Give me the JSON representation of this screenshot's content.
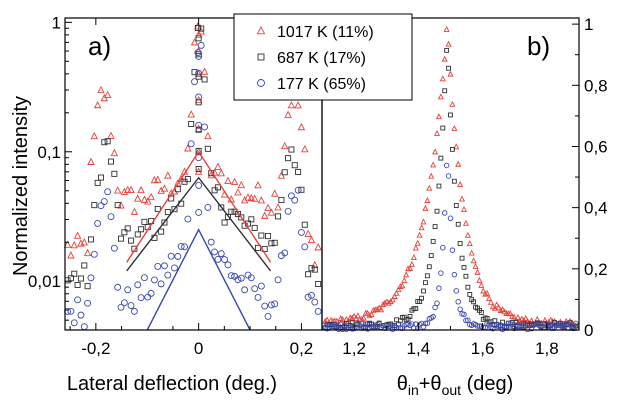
{
  "chart_data": [
    {
      "type": "scatter",
      "panel_label": "a)",
      "xlabel": "Lateral deflection (deg.)",
      "ylabel": "Normalized intensity",
      "yscale": "log",
      "xlim": [
        -0.26,
        0.24
      ],
      "ylim": [
        0.0042,
        1.08
      ],
      "xticks": [
        -0.2,
        0,
        0.2
      ],
      "xtick_labels": [
        "-0,2",
        "0",
        "0,2"
      ],
      "yticks": [
        0.01,
        0.1,
        1
      ],
      "ytick_labels": [
        "0,01",
        "0,1",
        "1"
      ],
      "grid": false,
      "legend": {
        "position": "top-center",
        "entries": [
          {
            "label": "1017 K (11%)",
            "marker": "triangle",
            "color": "#e8413a"
          },
          {
            "label": "687 K (17%)",
            "marker": "square",
            "color": "#303030"
          },
          {
            "label": "177 K (65%)",
            "marker": "circle",
            "color": "#3a48b0"
          }
        ]
      },
      "series": [
        {
          "name": "1017 K (11%)",
          "marker": "triangle",
          "color": "#e8413a",
          "model": {
            "background": 0.036,
            "center_scatter": 0.05,
            "spec_peak": 1.0,
            "side_peaks": 0.24,
            "side_pos": 0.185,
            "tail": 0.008
          },
          "fit_line": {
            "x": [
              -0.14,
              0,
              0.14
            ],
            "y": [
              0.014,
              0.1,
              0.014
            ]
          }
        },
        {
          "name": "687 K (17%)",
          "marker": "square",
          "color": "#303030",
          "model": {
            "background": 0.014,
            "center_scatter": 0.055,
            "spec_peak": 0.93,
            "side_peaks": 0.095,
            "side_pos": 0.18,
            "tail": 0.0065
          },
          "fit_line": {
            "x": [
              -0.14,
              0,
              0.14
            ],
            "y": [
              0.012,
              0.063,
              0.012
            ]
          }
        },
        {
          "name": "177 K (65%)",
          "marker": "circle",
          "color": "#3a48b0",
          "model": {
            "background": 0.0048,
            "center_scatter": 0.02,
            "spec_peak": 0.7,
            "side_peaks": 0.045,
            "side_pos": 0.185,
            "tail": 0.0045
          },
          "fit_line": {
            "x": [
              -0.1,
              0,
              0.1
            ],
            "y": [
              0.0042,
              0.025,
              0.0042
            ]
          }
        }
      ]
    },
    {
      "type": "scatter",
      "panel_label": "b)",
      "xlabel_parts": [
        "θ",
        "in",
        "+θ",
        "out",
        " (deg)"
      ],
      "ylabel": "",
      "yscale": "linear",
      "xlim": [
        1.1,
        1.9
      ],
      "ylim": [
        0,
        1.02
      ],
      "xticks": [
        1.2,
        1.4,
        1.6,
        1.8
      ],
      "xtick_labels": [
        "1,2",
        "1,4",
        "1,6",
        "1,8"
      ],
      "yticks": [
        0,
        0.2,
        0.4,
        0.6,
        0.8,
        1
      ],
      "ytick_labels": [
        "0",
        "0,2",
        "0,4",
        "0,6",
        "0,8",
        "1"
      ],
      "grid": false,
      "series": [
        {
          "name": "1017 K (11%)",
          "marker": "triangle",
          "color": "#e8413a",
          "peak_x": 1.49,
          "peak": 1.0,
          "width_left": 0.2,
          "width_right": 0.15,
          "floor": 0.02
        },
        {
          "name": "687 K (17%)",
          "marker": "square",
          "color": "#303030",
          "peak_x": 1.49,
          "peak": 0.97,
          "width_left": 0.1,
          "width_right": 0.09,
          "floor": 0.015
        },
        {
          "name": "177 K (65%)",
          "marker": "circle",
          "color": "#3a48b0",
          "peak_x": 1.49,
          "peak": 0.62,
          "width_left": 0.045,
          "width_right": 0.05,
          "floor": 0.012
        }
      ]
    }
  ]
}
